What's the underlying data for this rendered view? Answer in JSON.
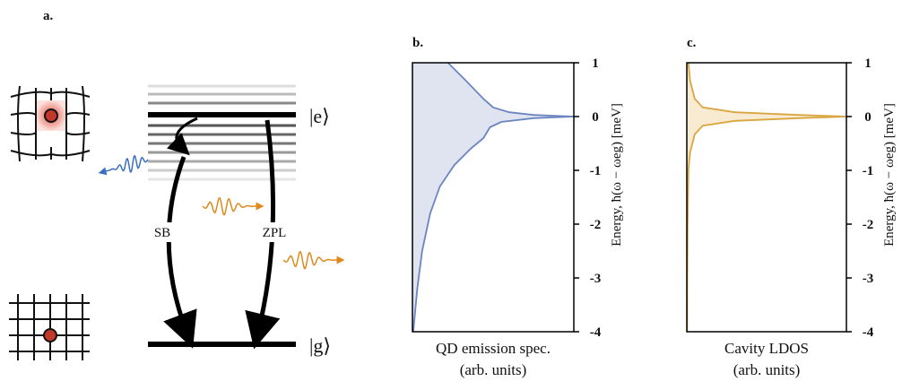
{
  "diagram": {
    "panel_label": "a.",
    "excited": "|e⟩",
    "ground": "|g⟩",
    "sb": "SB",
    "zpl": "ZPL"
  },
  "chart_data": [
    {
      "type": "line",
      "title": "b.",
      "xlabel": "QD emission spec.",
      "xlabel_note": "(arb. units)",
      "ylabel": "Energy, ħ(ω − ωeg) [meV]",
      "color": "#6a85bf",
      "fill": "#dfe4f0",
      "xlim": [
        0,
        1
      ],
      "ylim": [
        -4,
        1
      ],
      "yticks": [
        1,
        0,
        -1,
        -2,
        -3,
        -4
      ],
      "y": [
        1,
        0.67,
        0.33,
        0.17,
        0.08,
        0.03,
        0,
        -0.03,
        -0.1,
        -0.2,
        -0.4,
        -0.6,
        -0.9,
        -1.3,
        -1.8,
        -2.5,
        -3.2,
        -4
      ],
      "values": [
        0.22,
        0.33,
        0.44,
        0.5,
        0.6,
        0.75,
        1,
        0.75,
        0.55,
        0.48,
        0.44,
        0.36,
        0.26,
        0.17,
        0.11,
        0.06,
        0.03,
        0.005
      ]
    },
    {
      "type": "line",
      "title": "c.",
      "xlabel": "Cavity LDOS",
      "xlabel_note": "(arb. units)",
      "ylabel": "Energy, ħ(ω − ωeg) [meV]",
      "color": "#d9a53f",
      "fill": "#f8ebd2",
      "xlim": [
        0,
        1
      ],
      "ylim": [
        -4,
        1
      ],
      "yticks": [
        1,
        0,
        -1,
        -2,
        -3,
        -4
      ],
      "y": [
        1,
        0.67,
        0.33,
        0.17,
        0.08,
        0.03,
        0,
        -0.03,
        -0.08,
        -0.17,
        -0.33,
        -0.67,
        -1,
        -2,
        -3,
        -4
      ],
      "values": [
        0.01,
        0.02,
        0.05,
        0.1,
        0.3,
        0.7,
        1,
        0.7,
        0.3,
        0.1,
        0.05,
        0.02,
        0.01,
        0.005,
        0.003,
        0.002
      ]
    }
  ]
}
